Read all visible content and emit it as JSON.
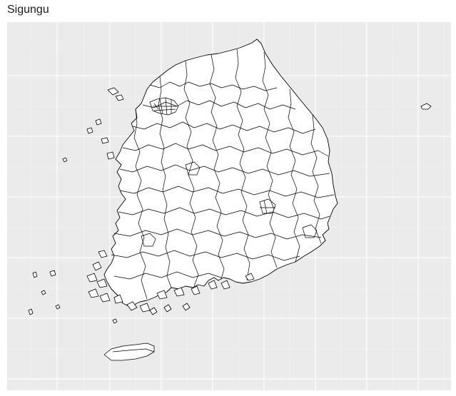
{
  "title": "Sigungu",
  "colors": {
    "panel_background": "#ebebeb",
    "grid_major": "#ffffff",
    "grid_minor": "#f5f5f5",
    "region_fill": "#ffffff",
    "region_stroke": "#000000"
  },
  "map": {
    "type": "choropleth-outline",
    "theme": "ggplot2 gray",
    "axes_labels_shown": false,
    "grid": true
  }
}
